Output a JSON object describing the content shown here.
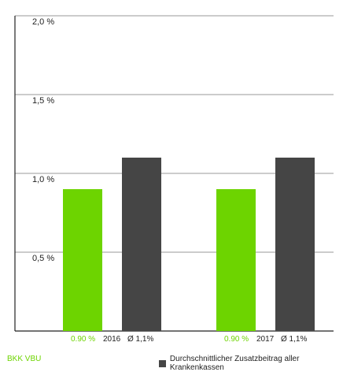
{
  "chart_data": {
    "type": "bar",
    "categories": [
      "2016",
      "2017"
    ],
    "series": [
      {
        "name": "BKK VBU",
        "values": [
          0.9,
          0.9
        ],
        "value_labels": [
          "0.90 %",
          "0.90 %"
        ],
        "color": "#6dd400"
      },
      {
        "name": "Durchschnittlicher Zusatzbeitrag aller Krankenkassen",
        "values": [
          1.1,
          1.1
        ],
        "value_labels": [
          "Ø 1,1%",
          "Ø 1,1%"
        ],
        "color": "#454545"
      }
    ],
    "ylim": [
      0,
      2.0
    ],
    "yticks": [
      {
        "value": 0.5,
        "label": "0,5 %"
      },
      {
        "value": 1.0,
        "label": "1,0 %"
      },
      {
        "value": 1.5,
        "label": "1,5 %"
      },
      {
        "value": 2.0,
        "label": "2,0 %"
      }
    ],
    "grid": true,
    "legend_position": "bottom"
  }
}
